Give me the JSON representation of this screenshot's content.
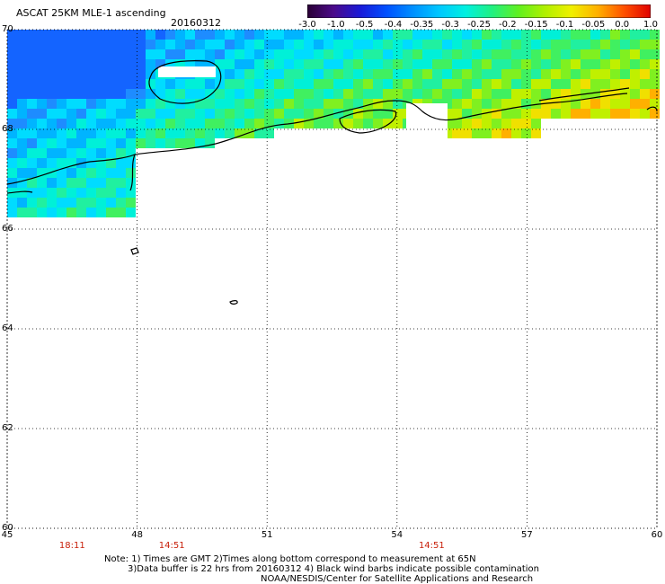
{
  "header": {
    "title": "ASCAT 25KM MLE-1 ascending",
    "date": "20160312"
  },
  "colorbar": {
    "ticks": [
      "-3.0",
      "-1.0",
      "-0.5",
      "-0.4",
      "-0.35",
      "-0.3",
      "-0.25",
      "-0.2",
      "-0.15",
      "-0.1",
      "-0.05",
      "0.0",
      "1.0"
    ],
    "colors": [
      "#2a0035",
      "#4b0a8a",
      "#1a1ad8",
      "#0050ff",
      "#0090ff",
      "#00c8ff",
      "#00f0e0",
      "#20f080",
      "#60f020",
      "#b0f000",
      "#f0f000",
      "#ffb000",
      "#ff5000",
      "#e00000"
    ]
  },
  "map": {
    "lat_labels": [
      "70",
      "68",
      "66",
      "64",
      "62",
      "60"
    ],
    "lon_labels": [
      "45",
      "48",
      "51",
      "54",
      "57",
      "60"
    ],
    "lat_range": [
      60,
      70
    ],
    "lon_range": [
      45,
      60
    ],
    "times": [
      "18:11",
      "14:51",
      "14:51"
    ],
    "time_lons": [
      46.5,
      48.8,
      54.8
    ]
  },
  "footer": {
    "note_line1": "Note: 1) Times are GMT 2)Times along bottom correspond to measurement at 65N",
    "note_line2": "3)Data buffer is 22 hrs from 20160312 4) Black wind barbs indicate possible contamination",
    "credit": "NOAA/NESDIS/Center for Satellite Applications and Research"
  }
}
